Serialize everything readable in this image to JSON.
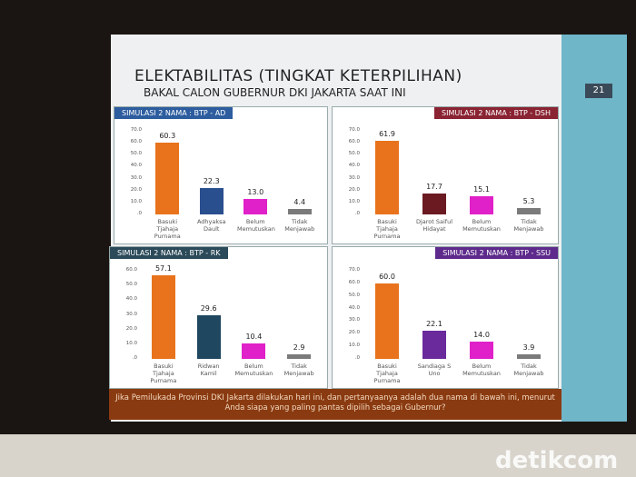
{
  "slide": {
    "title": "ELEKTABILITAS (TINGKAT KETERPILIHAN)",
    "subtitle": "BAKAL CALON GUBERNUR DKI JAKARTA SAAT INI",
    "page": "21",
    "footer": "Jika Pemilukada Provinsi DKI Jakarta dilakukan hari ini, dan pertanyaanya adalah dua nama di bawah ini, menurut Anda siapa yang paling pantas dipilih sebagai Gubernur?"
  },
  "watermark": "detikcom",
  "chart_data": [
    {
      "type": "bar",
      "title": "SIMULASI 2 NAMA : BTP - AD",
      "header_color": "#2d5d9f",
      "categories": [
        "Basuki Tjahaja Purnama",
        "Adhyaksa Dault",
        "Belum Memutuskan",
        "Tidak Menjawab"
      ],
      "values": [
        60.3,
        22.3,
        13.0,
        4.4
      ],
      "value_labels": [
        "60.3",
        "22.3",
        "13.0",
        "4.4"
      ],
      "colors": [
        "#e8731c",
        "#2a4f8f",
        "#e020c8",
        "#7a7a7a"
      ],
      "ylim": [
        0,
        70
      ],
      "yticks": [
        {
          "value": 0,
          "label": ".0"
        },
        {
          "value": 10,
          "label": "10.0"
        },
        {
          "value": 20,
          "label": "20.0"
        },
        {
          "value": 30,
          "label": "30.0"
        },
        {
          "value": 40,
          "label": "40.0"
        },
        {
          "value": 50,
          "label": "50.0"
        },
        {
          "value": 60,
          "label": "60.0"
        },
        {
          "value": 70,
          "label": "70.0"
        }
      ],
      "grid": false
    },
    {
      "type": "bar",
      "title": "SIMULASI 2 NAMA : BTP - DSH",
      "header_color": "#8a2332",
      "categories": [
        "Basuki Tjahaja Purnama",
        "Djarot Saiful Hidayat",
        "Belum Memutuskan",
        "Tidak Menjawab"
      ],
      "values": [
        61.9,
        17.7,
        15.1,
        5.3
      ],
      "value_labels": [
        "61.9",
        "17.7",
        "15.1",
        "5.3"
      ],
      "colors": [
        "#e8731c",
        "#6b1a22",
        "#e020c8",
        "#7a7a7a"
      ],
      "ylim": [
        0,
        70
      ],
      "yticks": [
        {
          "value": 0,
          "label": ".0"
        },
        {
          "value": 10,
          "label": "10.0"
        },
        {
          "value": 20,
          "label": "20.0"
        },
        {
          "value": 30,
          "label": "30.0"
        },
        {
          "value": 40,
          "label": "40.0"
        },
        {
          "value": 50,
          "label": "50.0"
        },
        {
          "value": 60,
          "label": "60.0"
        },
        {
          "value": 70,
          "label": "70.0"
        }
      ],
      "grid": false
    },
    {
      "type": "bar",
      "title": "SIMULASI 2 NAMA : BTP - RK",
      "header_color": "#2b4a5a",
      "categories": [
        "Basuki Tjahaja Purnama",
        "Ridwan Kamil",
        "Belum Memutuskan",
        "Tidak Menjawab"
      ],
      "values": [
        57.1,
        29.6,
        10.4,
        2.9
      ],
      "value_labels": [
        "57.1",
        "29.6",
        "10.4",
        "2.9"
      ],
      "colors": [
        "#e8731c",
        "#1f4860",
        "#e020c8",
        "#7a7a7a"
      ],
      "ylim": [
        0,
        60
      ],
      "yticks": [
        {
          "value": 0,
          "label": ".0"
        },
        {
          "value": 10,
          "label": "10.0"
        },
        {
          "value": 20,
          "label": "20.0"
        },
        {
          "value": 30,
          "label": "30.0"
        },
        {
          "value": 40,
          "label": "40.0"
        },
        {
          "value": 50,
          "label": "50.0"
        },
        {
          "value": 60,
          "label": "60.0"
        }
      ],
      "grid": false
    },
    {
      "type": "bar",
      "title": "SIMULASI 2 NAMA : BTP - SSU",
      "header_color": "#5e2b8c",
      "categories": [
        "Basuki Tjahaja Purnama",
        "Sandiaga S Uno",
        "Belum Memutuskan",
        "Tidak Menjawab"
      ],
      "values": [
        60.0,
        22.1,
        14.0,
        3.9
      ],
      "value_labels": [
        "60.0",
        "22.1",
        "14.0",
        "3.9"
      ],
      "colors": [
        "#e8731c",
        "#6a2a9c",
        "#e020c8",
        "#7a7a7a"
      ],
      "ylim": [
        0,
        70
      ],
      "yticks": [
        {
          "value": 0,
          "label": ".0"
        },
        {
          "value": 10,
          "label": "10.0"
        },
        {
          "value": 20,
          "label": "20.0"
        },
        {
          "value": 30,
          "label": "30.0"
        },
        {
          "value": 40,
          "label": "40.0"
        },
        {
          "value": 50,
          "label": "50.0"
        },
        {
          "value": 60,
          "label": "60.0"
        },
        {
          "value": 70,
          "label": "70.0"
        }
      ],
      "grid": false
    }
  ]
}
